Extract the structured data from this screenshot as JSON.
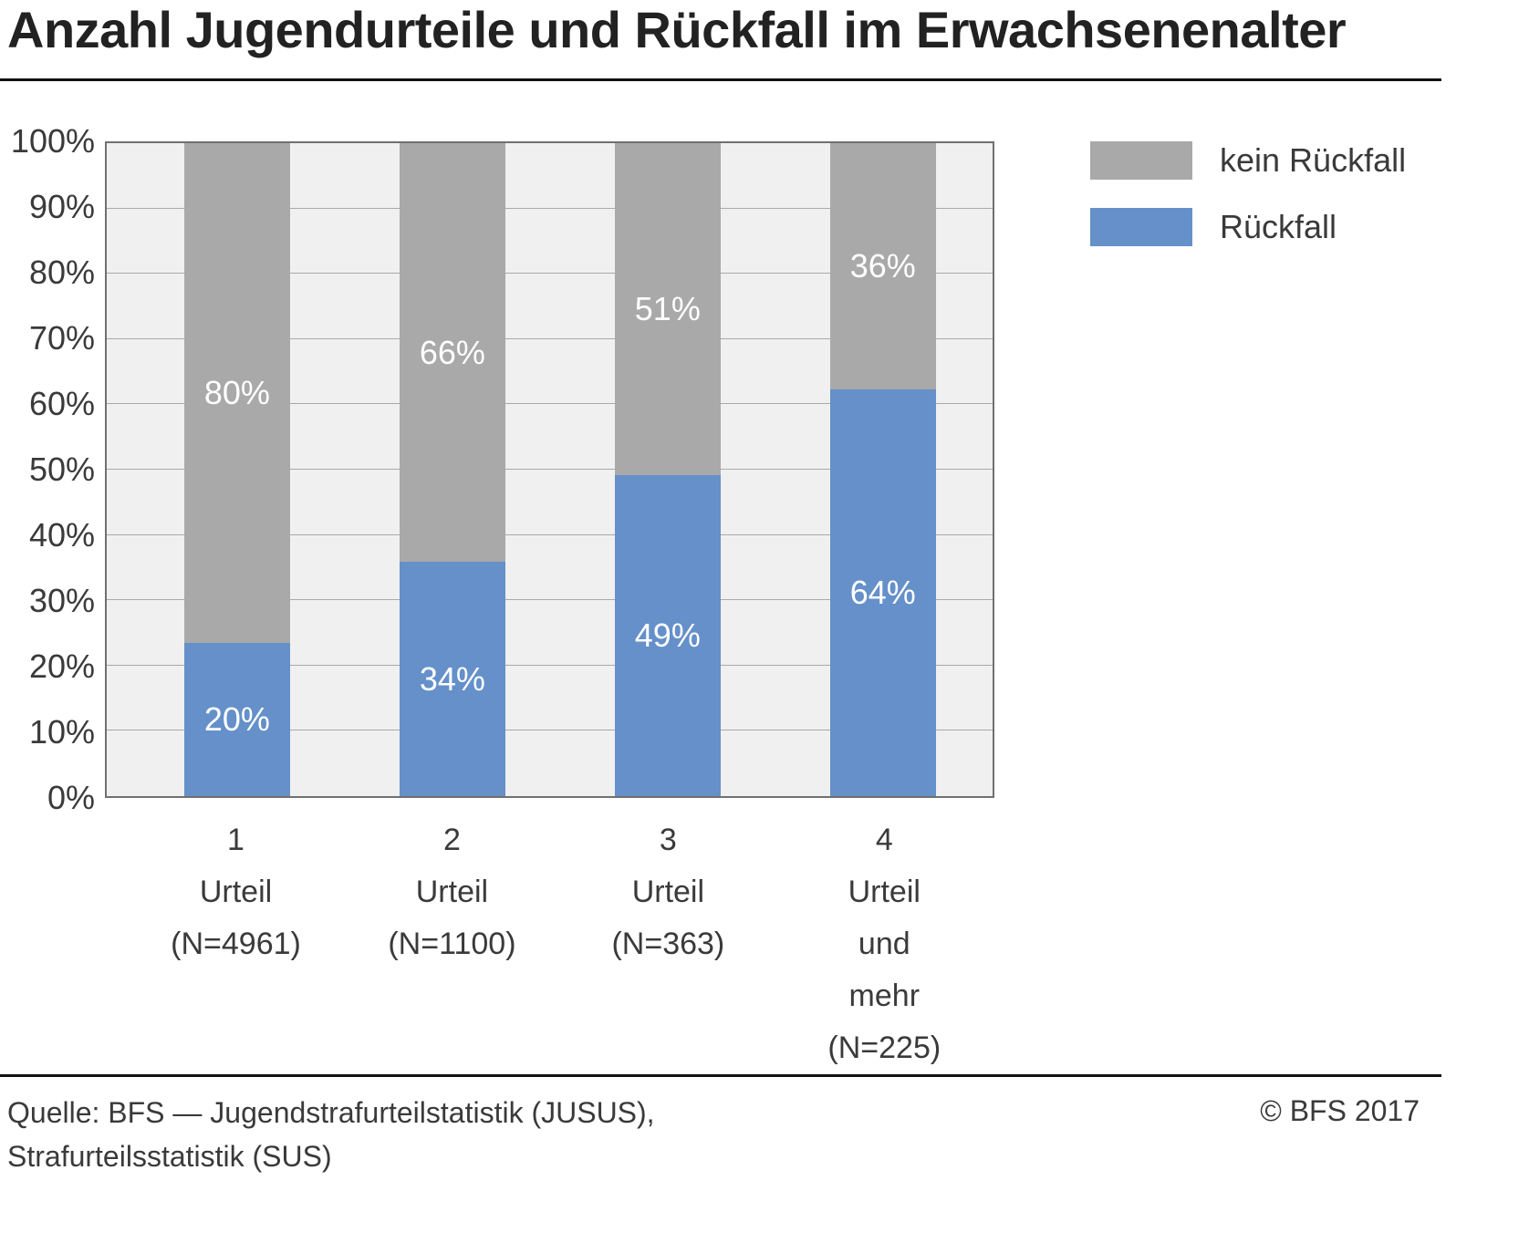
{
  "title": "Anzahl Jugendurteile und Rückfall im Erwachsenenalter",
  "chart_data": {
    "type": "bar",
    "stacked": true,
    "categories": [
      "1\nUrteil\n(N=4961)",
      "2\nUrteil\n(N=1100)",
      "3\nUrteil\n(N=363)",
      "4\nUrteil\nund mehr\n(N=225)"
    ],
    "series": [
      {
        "name": "Rückfall",
        "color": "#6590c9",
        "values": [
          20,
          34,
          49,
          64
        ]
      },
      {
        "name": "kein Rückfall",
        "color": "#a9a9a9",
        "values": [
          80,
          66,
          51,
          36
        ]
      }
    ],
    "value_suffix": "%",
    "ylim": [
      0,
      100
    ],
    "ytick_step": 10,
    "ytick_suffix": "%",
    "grid": true,
    "plot_background": "#f0f0f0",
    "legend_position": "top-right",
    "legend_order": [
      "kein Rückfall",
      "Rückfall"
    ]
  },
  "footer": {
    "source_line1": "Quelle: BFS — Jugendstrafurteilstatistik (JUSUS),",
    "source_line2": "Strafurteilsstatistik (SUS)",
    "copyright": "© BFS 2017"
  }
}
